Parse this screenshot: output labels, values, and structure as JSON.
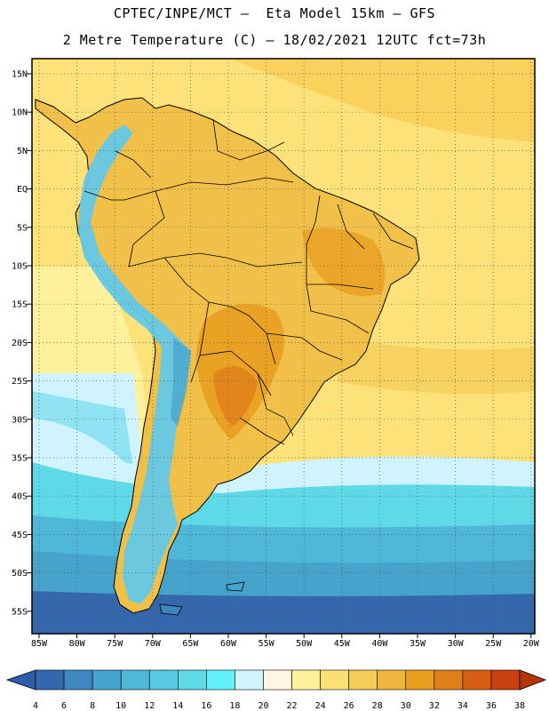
{
  "title_line1": "CPTEC/INPE/MCT –  Eta Model 15km – GFS",
  "title_line2": "2 Metre Temperature (C) – 18/02/2021 12UTC fct=73h",
  "lat_labels": [
    "15N",
    "10N",
    "5N",
    "EQ",
    "5S",
    "10S",
    "15S",
    "20S",
    "25S",
    "30S",
    "35S",
    "40S",
    "45S",
    "50S",
    "55S"
  ],
  "lon_labels": [
    "85W",
    "80W",
    "75W",
    "70W",
    "65W",
    "60W",
    "55W",
    "50W",
    "45W",
    "40W",
    "35W",
    "30W",
    "25W",
    "20W"
  ],
  "colorbar": {
    "ticks": [
      "4",
      "6",
      "8",
      "10",
      "12",
      "14",
      "16",
      "18",
      "20",
      "22",
      "24",
      "26",
      "28",
      "30",
      "32",
      "34",
      "36",
      "38"
    ],
    "colors": [
      "#3567ad",
      "#3f87c0",
      "#45a3cc",
      "#4fb8d8",
      "#57c9e0",
      "#5fd8e8",
      "#63f0f8",
      "#cff4ff",
      "#fff7e3",
      "#fff19c",
      "#fbdf72",
      "#f5cc57",
      "#eeb63c",
      "#e99e20",
      "#e07f1a",
      "#d75e14",
      "#c8400e"
    ],
    "under_color": "#2f5ea8",
    "over_color": "#b7340b"
  },
  "colors": {
    "ocean_warm": "#fde27a",
    "ocean_mild": "#fff19c",
    "ocean_cool": "#cff4ff",
    "ocean_cold": "#5fd8e8",
    "ocean_colder": "#45a3cc",
    "ocean_coldest": "#3567ad",
    "land_hot": "#eeb63c",
    "land_hotter": "#e99e20",
    "andes": "#63c8e8",
    "border": "#000000"
  }
}
